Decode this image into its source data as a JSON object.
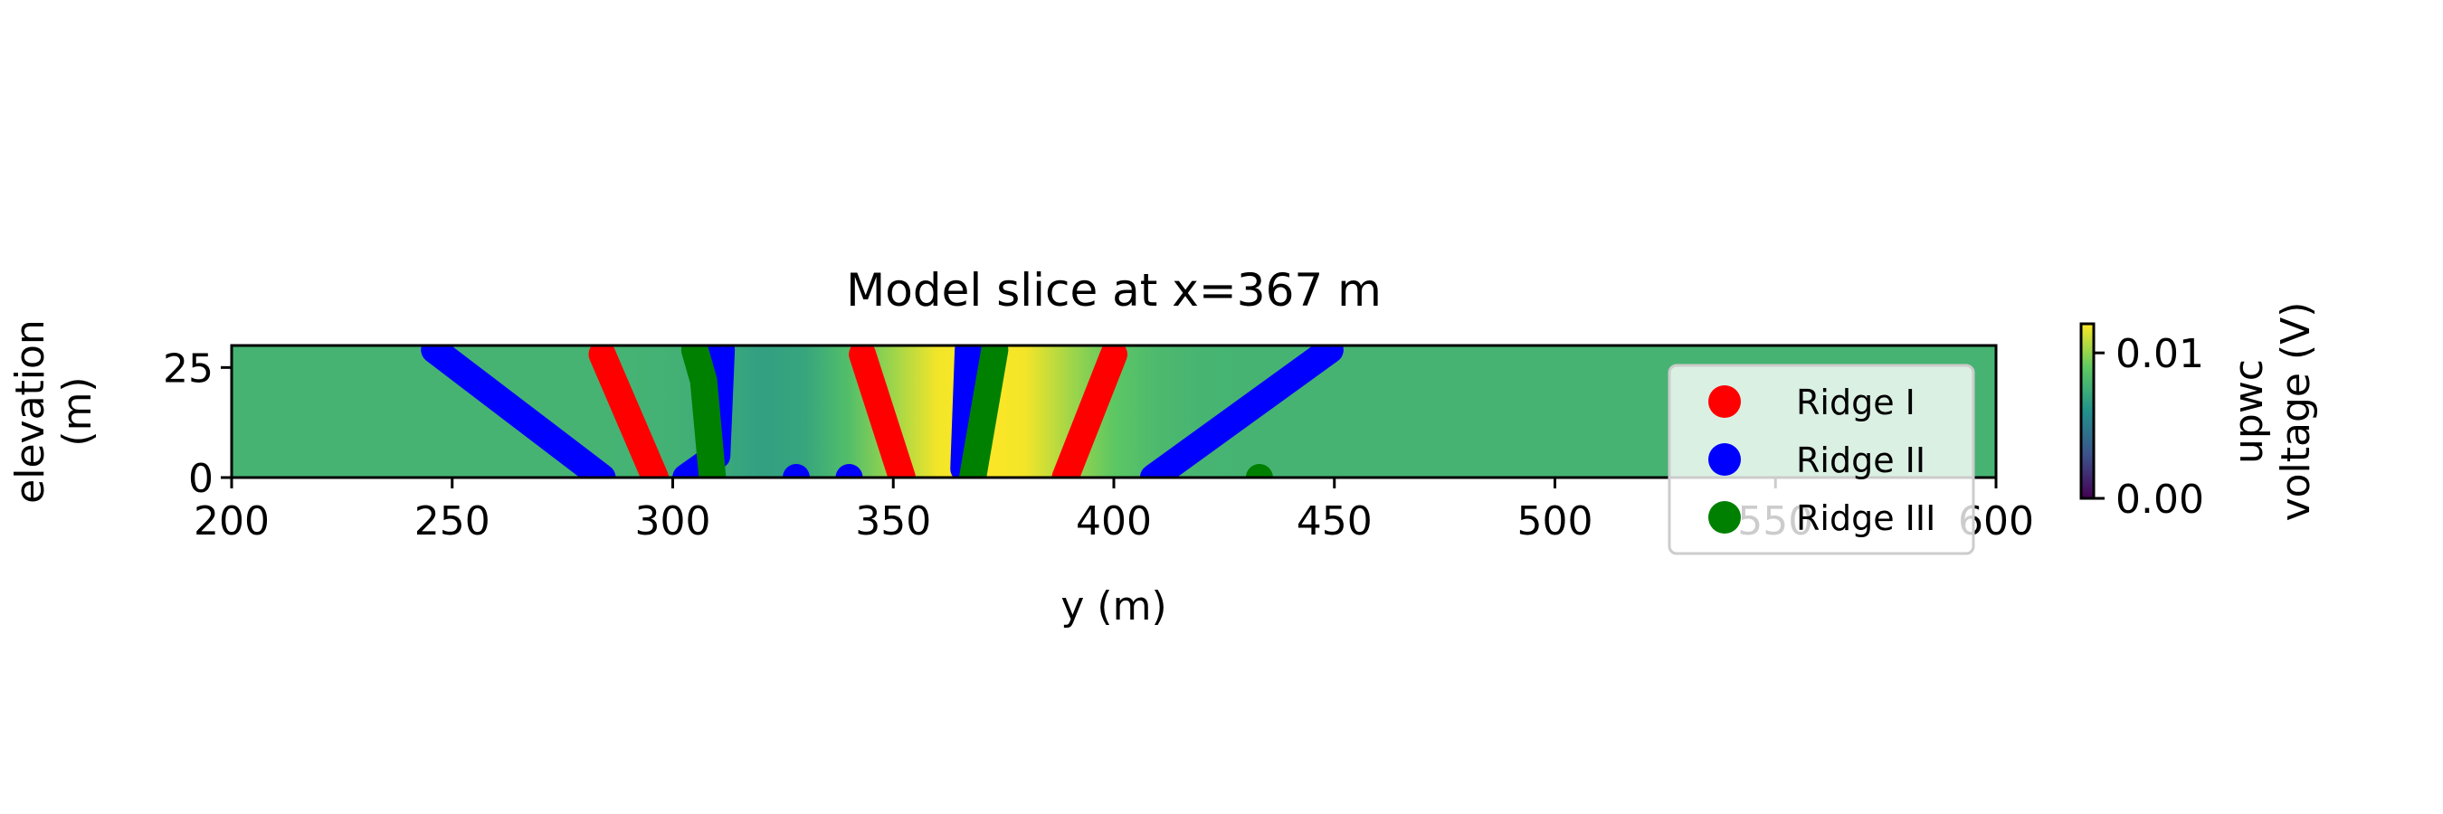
{
  "chart_data": {
    "type": "scatter",
    "title": "Model slice at x=367 m",
    "xlabel": "y (m)",
    "ylabel": "elevation\n(m)",
    "xlim": [
      200,
      600
    ],
    "ylim": [
      0,
      30
    ],
    "xticks": [
      200,
      250,
      300,
      350,
      400,
      450,
      500,
      550,
      600
    ],
    "yticks": [
      0,
      25
    ],
    "background": {
      "kind": "heatmap",
      "colormap": "viridis",
      "field_peak_y": 370,
      "field_peak_value": 0.0125,
      "field_baseline_value": 0.0078
    },
    "colorbar": {
      "label_line1": "upwc",
      "label_line2": "voltage (V)",
      "range": [
        0.0,
        0.012
      ],
      "ticks": [
        "0.00",
        "0.01"
      ],
      "tick_values": [
        0.0,
        0.01
      ]
    },
    "legend": {
      "position": "right",
      "entries": [
        "Ridge I",
        "Ridge II",
        "Ridge III"
      ]
    },
    "series": [
      {
        "name": "Ridge I",
        "color": "#ff0000",
        "segments": [
          [
            [
              284,
              28
            ],
            [
              296,
              0
            ]
          ],
          [
            [
              343,
              28
            ],
            [
              352,
              0
            ]
          ],
          [
            [
              400,
              28
            ],
            [
              389,
              0
            ]
          ]
        ]
      },
      {
        "name": "Ridge II",
        "color": "#0000ff",
        "segments": [
          [
            [
              246,
              29
            ],
            [
              284,
              0
            ]
          ],
          [
            [
              311,
              29
            ],
            [
              310,
              5
            ],
            [
              303,
              0
            ]
          ],
          [
            [
              367,
              29
            ],
            [
              366,
              2
            ]
          ],
          [
            [
              449,
              29
            ],
            [
              409,
              0
            ]
          ]
        ],
        "points": [
          [
            328,
            0
          ],
          [
            340,
            0
          ]
        ]
      },
      {
        "name": "Ridge III",
        "color": "#008000",
        "segments": [
          [
            [
              305,
              29
            ],
            [
              307,
              22
            ],
            [
              309,
              0
            ]
          ],
          [
            [
              373,
              29
            ],
            [
              368,
              0
            ]
          ]
        ],
        "points": [
          [
            433,
            0
          ]
        ]
      }
    ]
  }
}
